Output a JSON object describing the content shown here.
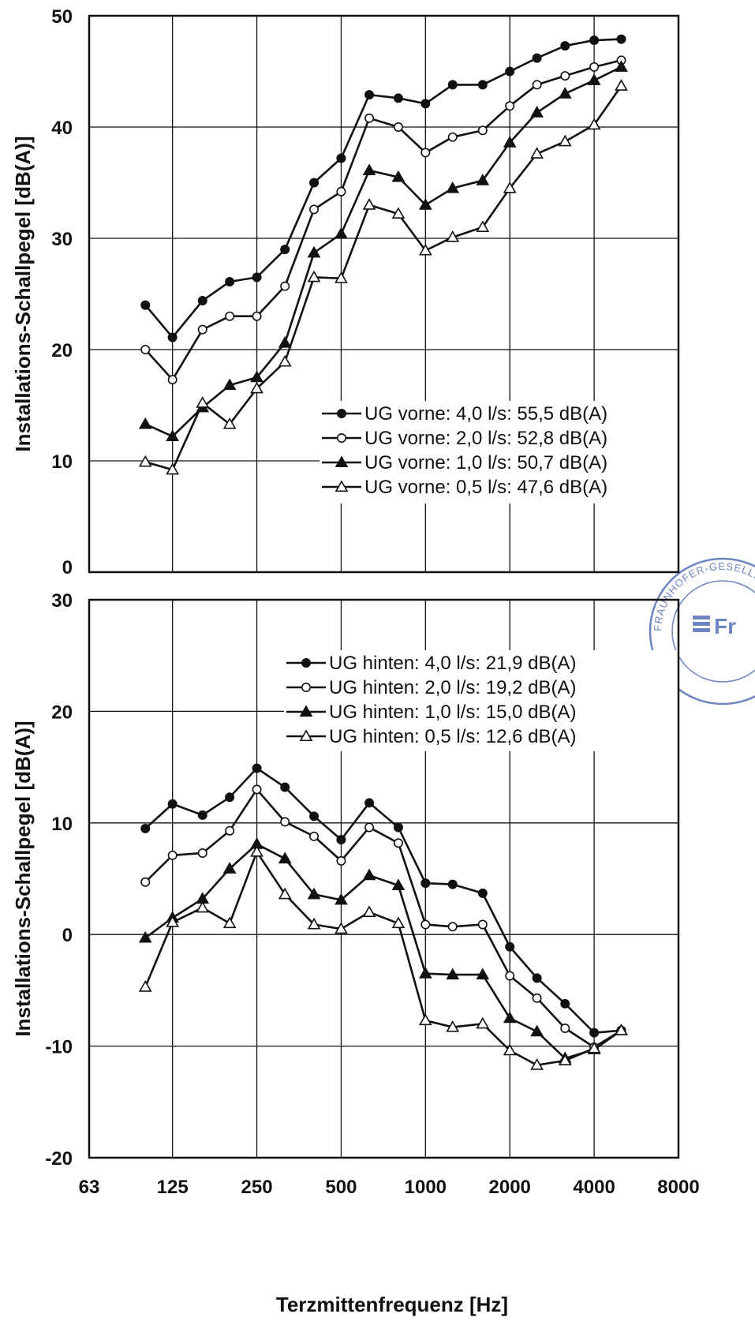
{
  "figure": {
    "xlabel": "Terzmittenfrequenz [Hz]",
    "x_tick_labels": [
      "63",
      "125",
      "250",
      "500",
      "1000",
      "2000",
      "4000",
      "8000"
    ]
  },
  "stamp": {
    "ring_text": "FRAUNHOFER-GESELLSCHAFT ZUR FÖRDERUNG",
    "logo_text": "Fr",
    "color": "#6f84c2"
  },
  "chart_data": [
    {
      "type": "line",
      "ylabel": "Installations-Schallpegel [dB(A)]",
      "ylim": [
        0,
        50
      ],
      "y_ticks": [
        0,
        10,
        20,
        30,
        40,
        50
      ],
      "xscale": "log2",
      "xlim": [
        63,
        8000
      ],
      "x_ticks": [
        63,
        125,
        250,
        500,
        1000,
        2000,
        4000,
        8000
      ],
      "grid": true,
      "legend_position": "lower-right",
      "x": [
        100,
        125,
        160,
        200,
        250,
        315,
        400,
        500,
        630,
        800,
        1000,
        1250,
        1600,
        2000,
        2500,
        3150,
        4000,
        5000
      ],
      "series": [
        {
          "name": "UG vorne: 4,0 l/s: 55,5 dB(A)",
          "marker": "circle-filled",
          "values": [
            24,
            21.1,
            24.4,
            26.1,
            26.5,
            29,
            35,
            37.2,
            42.9,
            42.6,
            42.1,
            43.8,
            43.8,
            45,
            46.2,
            47.3,
            47.8,
            47.9
          ]
        },
        {
          "name": "UG vorne: 2,0 l/s: 52,8 dB(A)",
          "marker": "circle-open",
          "values": [
            20,
            17.3,
            21.8,
            23,
            23,
            25.7,
            32.6,
            34.2,
            40.8,
            40,
            37.7,
            39.1,
            39.7,
            41.9,
            43.8,
            44.6,
            45.4,
            46
          ]
        },
        {
          "name": "UG vorne: 1,0 l/s: 50,7 dB(A)",
          "marker": "triangle-filled",
          "values": [
            13.3,
            12.2,
            14.8,
            16.8,
            17.5,
            20.6,
            28.7,
            30.4,
            36.1,
            35.5,
            33,
            34.5,
            35.2,
            38.6,
            41.3,
            43,
            44.2,
            45.4
          ]
        },
        {
          "name": "UG vorne: 0,5 l/s: 47,6 dB(A)",
          "marker": "triangle-open",
          "values": [
            9.9,
            9.2,
            15.2,
            13.3,
            16.5,
            18.9,
            26.5,
            26.4,
            33,
            32.2,
            28.9,
            30.1,
            31,
            34.5,
            37.6,
            38.7,
            40.2,
            43.7
          ]
        }
      ]
    },
    {
      "type": "line",
      "ylabel": "Installations-Schallpegel [dB(A)]",
      "ylim": [
        -20,
        30
      ],
      "y_ticks": [
        -20,
        -10,
        0,
        10,
        20,
        30
      ],
      "xscale": "log2",
      "xlim": [
        63,
        8000
      ],
      "x_ticks": [
        63,
        125,
        250,
        500,
        1000,
        2000,
        4000,
        8000
      ],
      "grid": true,
      "legend_position": "upper-right",
      "x": [
        100,
        125,
        160,
        200,
        250,
        315,
        400,
        500,
        630,
        800,
        1000,
        1250,
        1600,
        2000,
        2500,
        3150,
        4000,
        5000
      ],
      "series": [
        {
          "name": "UG hinten: 4,0 l/s: 21,9 dB(A)",
          "marker": "circle-filled",
          "values": [
            9.5,
            11.7,
            10.7,
            12.3,
            14.9,
            13.2,
            10.6,
            8.5,
            11.8,
            9.6,
            4.6,
            4.5,
            3.7,
            -1.1,
            -3.9,
            -6.2,
            -8.8,
            -8.6
          ]
        },
        {
          "name": "UG hinten: 2,0 l/s: 19,2 dB(A)",
          "marker": "circle-open",
          "values": [
            4.7,
            7.1,
            7.3,
            9.3,
            13,
            10.1,
            8.8,
            6.6,
            9.6,
            8.2,
            0.9,
            0.7,
            0.9,
            -3.7,
            -5.7,
            -8.4,
            -10.1,
            -8.6
          ]
        },
        {
          "name": "UG hinten: 1,0 l/s: 15,0 dB(A)",
          "marker": "triangle-filled",
          "values": [
            -0.3,
            1.5,
            3.2,
            5.9,
            8.1,
            6.8,
            3.6,
            3.1,
            5.3,
            4.4,
            -3.5,
            -3.6,
            -3.6,
            -7.5,
            -8.7,
            -11.1,
            -10.3,
            -8.6
          ]
        },
        {
          "name": "UG hinten: 0,5 l/s: 12,6 dB(A)",
          "marker": "triangle-open",
          "values": [
            -4.7,
            1.1,
            2.4,
            1.0,
            7.4,
            3.6,
            0.9,
            0.5,
            2.0,
            1.0,
            -7.7,
            -8.3,
            -8.0,
            -10.4,
            -11.7,
            -11.3,
            -10.2,
            -8.6
          ]
        }
      ]
    }
  ]
}
